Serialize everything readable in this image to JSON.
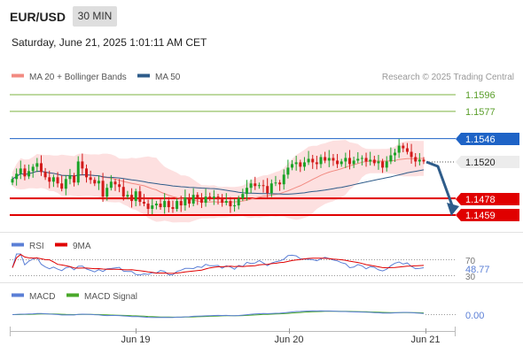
{
  "header": {
    "pair": "EUR/USD",
    "timeframe": "30 MIN",
    "datetime": "Saturday, June 21, 2025 1:01:11 AM CET"
  },
  "chart_data": [
    {
      "type": "candlestick",
      "title": "",
      "legend": [
        {
          "name": "MA 20 + Bollinger Bands",
          "color": "#f28b82"
        },
        {
          "name": "MA 50",
          "color": "#2e5c8a"
        }
      ],
      "legend_placement": "top-left",
      "credit": "Research © 2025 Trading Central",
      "x_ticks": [
        "Jun 19",
        "Jun 20",
        "Jun 21"
      ],
      "ylim": [
        1.4415,
        1.1605
      ],
      "levels": [
        {
          "label": "1.1596",
          "kind": "resistance",
          "color": "#7cb342"
        },
        {
          "label": "1.1577",
          "kind": "resistance",
          "color": "#7cb342"
        },
        {
          "label": "1.1546",
          "kind": "pivot",
          "color": "#1e63c6"
        },
        {
          "label": "1.1520",
          "kind": "last price",
          "color": "#222222"
        },
        {
          "label": "1.1478",
          "kind": "support",
          "color": "#e00000"
        },
        {
          "label": "1.1459",
          "kind": "support",
          "color": "#e00000"
        }
      ],
      "price_labels": {
        "level_1": "1.1596",
        "level_2": "1.1577",
        "level_3": "1.1546",
        "last": "1.1520",
        "level_5": "1.1478",
        "level_6": "1.1459"
      },
      "forecast_arrow": {
        "from": 1.152,
        "to": 1.1465,
        "color": "#2e5c8a"
      },
      "close_series": [
        1.15,
        1.1506,
        1.1512,
        1.1503,
        1.1509,
        1.1514,
        1.1518,
        1.1508,
        1.1502,
        1.1497,
        1.1502,
        1.1495,
        1.1489,
        1.15,
        1.1504,
        1.1496,
        1.152,
        1.1512,
        1.1502,
        1.1499,
        1.1495,
        1.1498,
        1.148,
        1.149,
        1.1497,
        1.1494,
        1.1491,
        1.148,
        1.1482,
        1.1475,
        1.1486,
        1.1474,
        1.1472,
        1.1466,
        1.147,
        1.1472,
        1.1468,
        1.1475,
        1.1468,
        1.1466,
        1.1475,
        1.147,
        1.1479,
        1.1472,
        1.1482,
        1.1478,
        1.1473,
        1.148,
        1.1478,
        1.148,
        1.1477,
        1.1473,
        1.1475,
        1.1469,
        1.147,
        1.1478,
        1.1483,
        1.149,
        1.1495,
        1.1492,
        1.1493,
        1.1492,
        1.1484,
        1.1495,
        1.1496,
        1.1494,
        1.1505,
        1.1513,
        1.1517,
        1.1519,
        1.1514,
        1.1519,
        1.1523,
        1.1519,
        1.1517,
        1.1525,
        1.1521,
        1.1524,
        1.1521,
        1.1517,
        1.152,
        1.1524,
        1.1517,
        1.1521,
        1.1523,
        1.1524,
        1.152,
        1.1522,
        1.1518,
        1.152,
        1.1513,
        1.152,
        1.1527,
        1.153,
        1.1538,
        1.1535,
        1.1531,
        1.1525,
        1.152,
        1.1522,
        1.152
      ]
    },
    {
      "type": "line",
      "legend": [
        {
          "name": "RSI",
          "color": "#5b7fd6"
        },
        {
          "name": "9MA",
          "color": "#e00000"
        }
      ],
      "levels": [
        "70",
        "30"
      ],
      "last_value": "48.77",
      "ylim": [
        30,
        70
      ]
    },
    {
      "type": "line",
      "legend": [
        {
          "name": "MACD",
          "color": "#5b7fd6"
        },
        {
          "name": "MACD Signal",
          "color": "#4aa82a"
        }
      ],
      "last_value": "0.00"
    }
  ],
  "colors": {
    "up_candle": "#1aa327",
    "down_candle": "#d31a1a",
    "band_fill": "#fde0e0",
    "grid_dots": "#888888"
  }
}
